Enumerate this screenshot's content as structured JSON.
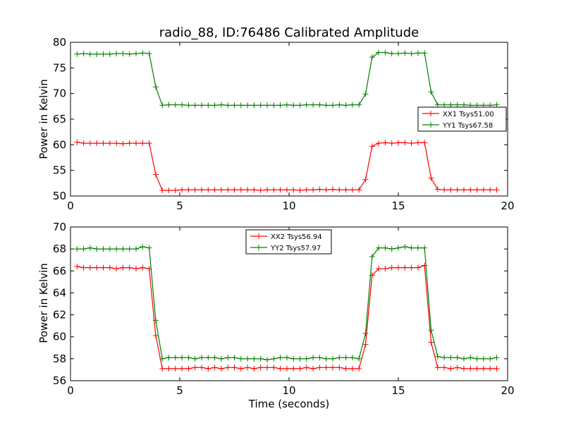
{
  "chart_data": [
    {
      "type": "line",
      "title": "radio_88, ID:76486 Calibrated Amplitude",
      "xlabel": "",
      "ylabel": "Power in Kelvin",
      "xlim": [
        0,
        20
      ],
      "ylim": [
        50,
        80
      ],
      "xticks": [
        0,
        5,
        10,
        15,
        20
      ],
      "yticks": [
        50,
        55,
        60,
        65,
        70,
        75,
        80
      ],
      "legend_position": "right",
      "series": [
        {
          "name": "XX1 Tsys51.00",
          "color": "#ff0000",
          "x": [
            0.3,
            0.6,
            0.9,
            1.2,
            1.5,
            1.8,
            2.1,
            2.4,
            2.7,
            3.0,
            3.3,
            3.6,
            3.9,
            4.2,
            4.5,
            4.8,
            5.1,
            5.4,
            5.7,
            6.0,
            6.3,
            6.6,
            6.9,
            7.2,
            7.5,
            7.8,
            8.1,
            8.4,
            8.7,
            9.0,
            9.3,
            9.6,
            9.9,
            10.2,
            10.5,
            10.8,
            11.1,
            11.4,
            11.7,
            12.0,
            12.3,
            12.6,
            12.9,
            13.2,
            13.5,
            13.8,
            14.1,
            14.4,
            14.7,
            15.0,
            15.3,
            15.6,
            15.9,
            16.2,
            16.5,
            16.8,
            17.1,
            17.4,
            17.7,
            18.0,
            18.3,
            18.6,
            18.9,
            19.2,
            19.5
          ],
          "y": [
            60.5,
            60.3,
            60.3,
            60.3,
            60.3,
            60.3,
            60.3,
            60.2,
            60.3,
            60.3,
            60.3,
            60.3,
            54.2,
            51.1,
            51.1,
            51.1,
            51.2,
            51.2,
            51.2,
            51.2,
            51.2,
            51.2,
            51.2,
            51.2,
            51.2,
            51.2,
            51.2,
            51.2,
            51.1,
            51.2,
            51.2,
            51.2,
            51.2,
            51.2,
            51.1,
            51.2,
            51.2,
            51.3,
            51.2,
            51.3,
            51.2,
            51.2,
            51.2,
            51.2,
            53.2,
            59.7,
            60.3,
            60.4,
            60.3,
            60.4,
            60.4,
            60.3,
            60.4,
            60.4,
            53.5,
            51.3,
            51.2,
            51.2,
            51.2,
            51.2,
            51.2,
            51.2,
            51.2,
            51.2,
            51.2
          ]
        },
        {
          "name": "YY1 Tsys67.58",
          "color": "#008000",
          "x": [
            0.3,
            0.6,
            0.9,
            1.2,
            1.5,
            1.8,
            2.1,
            2.4,
            2.7,
            3.0,
            3.3,
            3.6,
            3.9,
            4.2,
            4.5,
            4.8,
            5.1,
            5.4,
            5.7,
            6.0,
            6.3,
            6.6,
            6.9,
            7.2,
            7.5,
            7.8,
            8.1,
            8.4,
            8.7,
            9.0,
            9.3,
            9.6,
            9.9,
            10.2,
            10.5,
            10.8,
            11.1,
            11.4,
            11.7,
            12.0,
            12.3,
            12.6,
            12.9,
            13.2,
            13.5,
            13.8,
            14.1,
            14.4,
            14.7,
            15.0,
            15.3,
            15.6,
            15.9,
            16.2,
            16.5,
            16.8,
            17.1,
            17.4,
            17.7,
            18.0,
            18.3,
            18.6,
            18.9,
            19.2,
            19.5
          ],
          "y": [
            77.7,
            77.8,
            77.7,
            77.7,
            77.7,
            77.7,
            77.8,
            77.8,
            77.7,
            77.8,
            77.9,
            77.8,
            71.3,
            67.7,
            67.8,
            67.8,
            67.8,
            67.7,
            67.7,
            67.7,
            67.7,
            67.7,
            67.8,
            67.7,
            67.7,
            67.7,
            67.7,
            67.7,
            67.7,
            67.7,
            67.7,
            67.7,
            67.8,
            67.7,
            67.7,
            67.8,
            67.8,
            67.8,
            67.7,
            67.7,
            67.8,
            67.7,
            67.8,
            67.8,
            69.9,
            77.1,
            78.0,
            78.0,
            77.8,
            77.8,
            77.9,
            77.8,
            77.9,
            77.9,
            70.3,
            67.8,
            67.8,
            67.8,
            67.8,
            67.8,
            67.7,
            67.7,
            67.7,
            67.7,
            67.8
          ]
        }
      ]
    },
    {
      "type": "line",
      "title": "",
      "xlabel": "Time (seconds)",
      "ylabel": "Power in Kelvin",
      "xlim": [
        0,
        20
      ],
      "ylim": [
        56,
        70
      ],
      "xticks": [
        0,
        5,
        10,
        15,
        20
      ],
      "yticks": [
        56,
        58,
        60,
        62,
        64,
        66,
        68,
        70
      ],
      "legend_position": "top-center",
      "series": [
        {
          "name": "XX2 Tsys56.94",
          "color": "#ff0000",
          "x": [
            0.3,
            0.6,
            0.9,
            1.2,
            1.5,
            1.8,
            2.1,
            2.4,
            2.7,
            3.0,
            3.3,
            3.6,
            3.9,
            4.2,
            4.5,
            4.8,
            5.1,
            5.4,
            5.7,
            6.0,
            6.3,
            6.6,
            6.9,
            7.2,
            7.5,
            7.8,
            8.1,
            8.4,
            8.7,
            9.0,
            9.3,
            9.6,
            9.9,
            10.2,
            10.5,
            10.8,
            11.1,
            11.4,
            11.7,
            12.0,
            12.3,
            12.6,
            12.9,
            13.2,
            13.5,
            13.8,
            14.1,
            14.4,
            14.7,
            15.0,
            15.3,
            15.6,
            15.9,
            16.2,
            16.5,
            16.8,
            17.1,
            17.4,
            17.7,
            18.0,
            18.3,
            18.6,
            18.9,
            19.2,
            19.5
          ],
          "y": [
            66.4,
            66.3,
            66.3,
            66.3,
            66.3,
            66.3,
            66.2,
            66.3,
            66.3,
            66.2,
            66.3,
            66.2,
            60.1,
            57.1,
            57.1,
            57.1,
            57.1,
            57.1,
            57.2,
            57.2,
            57.1,
            57.2,
            57.1,
            57.2,
            57.2,
            57.1,
            57.2,
            57.1,
            57.2,
            57.2,
            57.2,
            57.1,
            57.1,
            57.1,
            57.1,
            57.2,
            57.1,
            57.2,
            57.2,
            57.2,
            57.2,
            57.1,
            57.1,
            57.1,
            59.3,
            65.6,
            66.2,
            66.2,
            66.3,
            66.3,
            66.3,
            66.3,
            66.3,
            66.5,
            59.5,
            57.2,
            57.2,
            57.1,
            57.2,
            57.1,
            57.1,
            57.1,
            57.1,
            57.1,
            57.1
          ]
        },
        {
          "name": "YY2 Tsys57.97",
          "color": "#008000",
          "x": [
            0.3,
            0.6,
            0.9,
            1.2,
            1.5,
            1.8,
            2.1,
            2.4,
            2.7,
            3.0,
            3.3,
            3.6,
            3.9,
            4.2,
            4.5,
            4.8,
            5.1,
            5.4,
            5.7,
            6.0,
            6.3,
            6.6,
            6.9,
            7.2,
            7.5,
            7.8,
            8.1,
            8.4,
            8.7,
            9.0,
            9.3,
            9.6,
            9.9,
            10.2,
            10.5,
            10.8,
            11.1,
            11.4,
            11.7,
            12.0,
            12.3,
            12.6,
            12.9,
            13.2,
            13.5,
            13.8,
            14.1,
            14.4,
            14.7,
            15.0,
            15.3,
            15.6,
            15.9,
            16.2,
            16.5,
            16.8,
            17.1,
            17.4,
            17.7,
            18.0,
            18.3,
            18.6,
            18.9,
            19.2,
            19.5
          ],
          "y": [
            68.0,
            68.0,
            68.1,
            68.0,
            68.0,
            68.0,
            68.0,
            68.0,
            68.0,
            68.0,
            68.2,
            68.1,
            61.5,
            58.0,
            58.1,
            58.1,
            58.1,
            58.1,
            58.0,
            58.1,
            58.1,
            58.1,
            58.0,
            58.1,
            58.1,
            58.0,
            58.0,
            58.0,
            58.0,
            57.9,
            58.0,
            58.1,
            58.1,
            58.0,
            58.0,
            58.0,
            58.1,
            58.1,
            58.0,
            58.0,
            58.1,
            58.1,
            58.1,
            58.0,
            60.3,
            67.3,
            68.1,
            68.1,
            68.0,
            68.1,
            68.2,
            68.1,
            68.1,
            68.1,
            60.6,
            58.2,
            58.1,
            58.1,
            58.1,
            58.0,
            58.1,
            58.0,
            58.0,
            58.0,
            58.1
          ]
        }
      ]
    }
  ]
}
